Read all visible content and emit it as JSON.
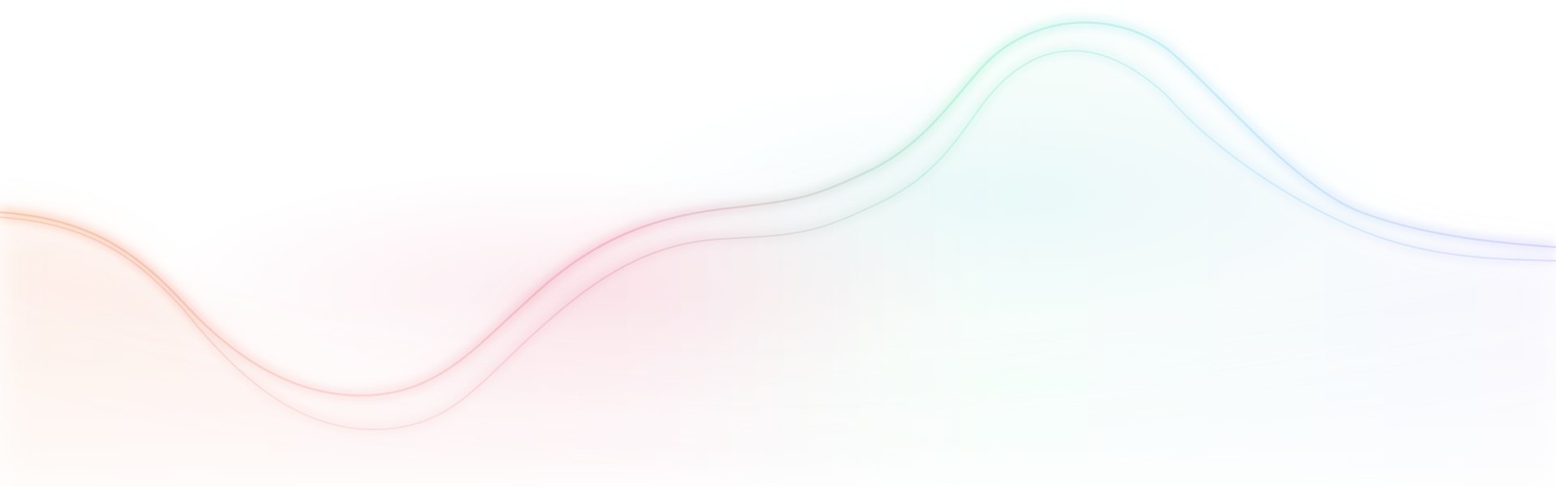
{
  "background": {
    "base_color": "#ffffff",
    "description_type": "decorative-gradient-wave",
    "colors": {
      "peach": "#f6b48f",
      "pink": "#ee9fb6",
      "mint": "#9ff0cf",
      "sky": "#aee2f7",
      "lavender": "#c9c2f6"
    }
  }
}
